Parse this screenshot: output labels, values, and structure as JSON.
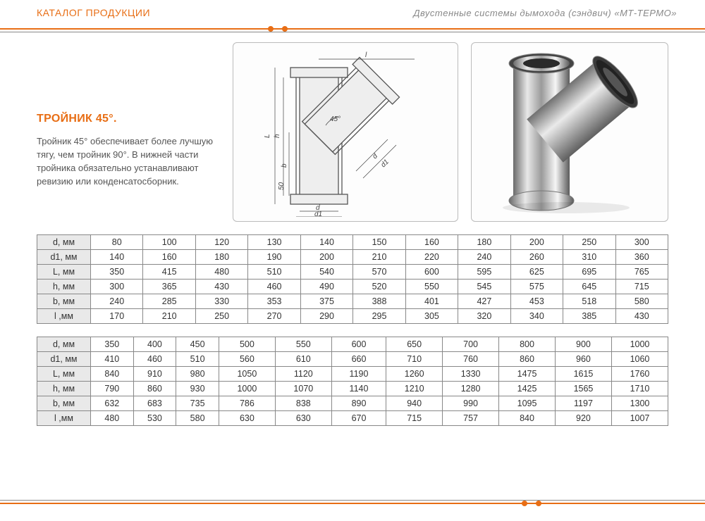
{
  "header": {
    "left": "КАТАЛОГ ПРОДУКЦИИ",
    "right": "Двустенные системы дымохода (сэндвич) «МТ-ТЕРМО»"
  },
  "product": {
    "title": "ТРОЙНИК 45°.",
    "description": "Тройник 45° обеспечивает более лучшую тягу, чем тройник 90°. В нижней части тройника обязательно устанавливают ревизию или конденсатосборник."
  },
  "diagram": {
    "labels": {
      "l": "l",
      "L": "L",
      "h": "h",
      "b": "b",
      "d": "d",
      "d1": "d1",
      "d1b": "d1",
      "db": "d",
      "fifty": "50",
      "angle": "45°"
    }
  },
  "colors": {
    "accent": "#e86e15",
    "grid": "#888888",
    "header_bg": "#e9e9e9",
    "text": "#333333"
  },
  "table1": {
    "columns": [
      "d, мм",
      "d1, мм",
      "L, мм",
      "h, мм",
      "b, мм",
      "l ,мм"
    ],
    "rows": [
      [
        "80",
        "100",
        "120",
        "130",
        "140",
        "150",
        "160",
        "180",
        "200",
        "250",
        "300"
      ],
      [
        "140",
        "160",
        "180",
        "190",
        "200",
        "210",
        "220",
        "240",
        "260",
        "310",
        "360"
      ],
      [
        "350",
        "415",
        "480",
        "510",
        "540",
        "570",
        "600",
        "595",
        "625",
        "695",
        "765"
      ],
      [
        "300",
        "365",
        "430",
        "460",
        "490",
        "520",
        "550",
        "545",
        "575",
        "645",
        "715"
      ],
      [
        "240",
        "285",
        "330",
        "353",
        "375",
        "388",
        "401",
        "427",
        "453",
        "518",
        "580"
      ],
      [
        "170",
        "210",
        "250",
        "270",
        "290",
        "295",
        "305",
        "320",
        "340",
        "385",
        "430"
      ]
    ]
  },
  "table2": {
    "columns": [
      "d, мм",
      "d1, мм",
      "L, мм",
      "h, мм",
      "b, мм",
      "l ,мм"
    ],
    "rows": [
      [
        "350",
        "400",
        "450",
        "500",
        "550",
        "600",
        "650",
        "700",
        "800",
        "900",
        "1000"
      ],
      [
        "410",
        "460",
        "510",
        "560",
        "610",
        "660",
        "710",
        "760",
        "860",
        "960",
        "1060"
      ],
      [
        "840",
        "910",
        "980",
        "1050",
        "1120",
        "1190",
        "1260",
        "1330",
        "1475",
        "1615",
        "1760"
      ],
      [
        "790",
        "860",
        "930",
        "1000",
        "1070",
        "1140",
        "1210",
        "1280",
        "1425",
        "1565",
        "1710"
      ],
      [
        "632",
        "683",
        "735",
        "786",
        "838",
        "890",
        "940",
        "990",
        "1095",
        "1197",
        "1300"
      ],
      [
        "480",
        "530",
        "580",
        "630",
        "630",
        "670",
        "715",
        "757",
        "840",
        "920",
        "1007"
      ]
    ]
  }
}
